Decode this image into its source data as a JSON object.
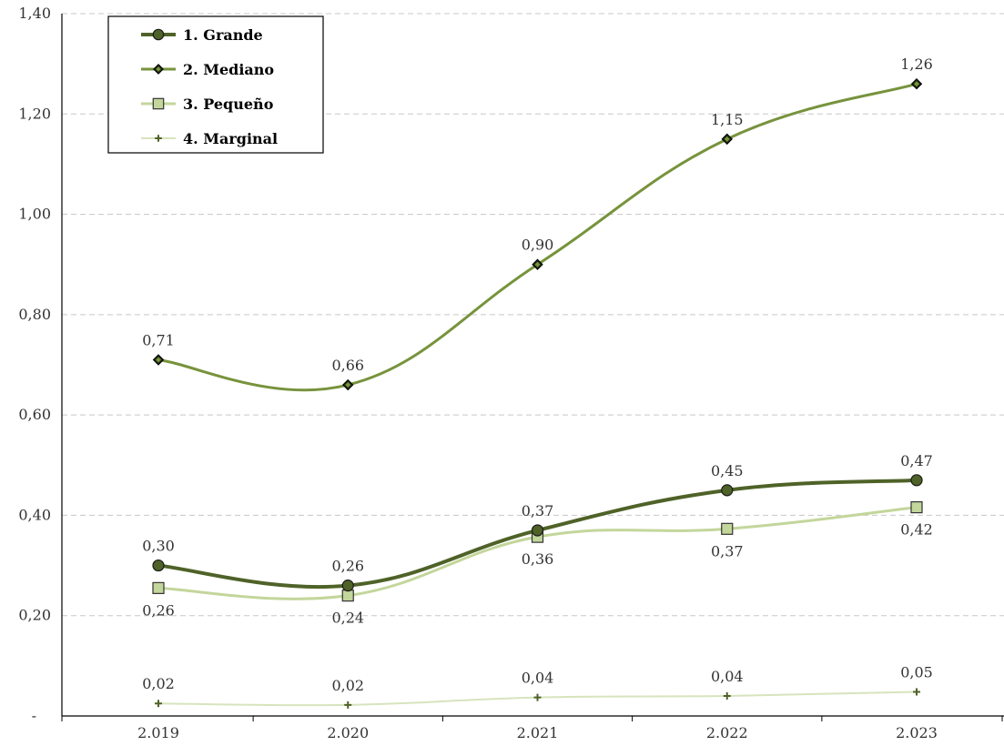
{
  "chart_data": {
    "type": "line",
    "title": "",
    "xlabel": "",
    "ylabel": "",
    "categories": [
      "2.019",
      "2.020",
      "2.021",
      "2.022",
      "2.023"
    ],
    "ylim": [
      0,
      1.4
    ],
    "yticks": [
      {
        "value": 0.2,
        "label": "0,20"
      },
      {
        "value": 0.4,
        "label": "0,40"
      },
      {
        "value": 0.6,
        "label": "0,60"
      },
      {
        "value": 0.8,
        "label": "0,80"
      },
      {
        "value": 1.0,
        "label": "1,00"
      },
      {
        "value": 1.2,
        "label": "1,20"
      },
      {
        "value": 1.4,
        "label": "1,40"
      }
    ],
    "zero_tick_label": "-",
    "grid": "horizontal dashed",
    "legend_position": "top-left",
    "series": [
      {
        "name": "1. Grande",
        "values": [
          0.3,
          0.26,
          0.37,
          0.45,
          0.47
        ],
        "labels": [
          "0,30",
          "0,26",
          "0,37",
          "0,45",
          "0,47"
        ],
        "label_pos": [
          "above",
          "above",
          "above",
          "above",
          "above"
        ],
        "color": "#4F6228",
        "marker": "circle",
        "marker_fill": "#4F6228",
        "line_width": 4
      },
      {
        "name": "2. Mediano",
        "values": [
          0.71,
          0.66,
          0.9,
          1.15,
          1.26
        ],
        "labels": [
          "0,71",
          "0,66",
          "0,90",
          "1,15",
          "1,26"
        ],
        "label_pos": [
          "above",
          "above",
          "above",
          "above",
          "above"
        ],
        "color": "#77933C",
        "marker": "diamond",
        "marker_fill": "#1f2a10",
        "line_width": 3
      },
      {
        "name": "3. Pequeño",
        "values": [
          0.255,
          0.24,
          0.357,
          0.373,
          0.416
        ],
        "labels": [
          "0,26",
          "0,24",
          "0,36",
          "0,37",
          "0,42"
        ],
        "label_pos": [
          "below",
          "below",
          "below",
          "below",
          "below"
        ],
        "color": "#C3D69B",
        "marker": "square",
        "marker_fill": "#C3D69B",
        "line_width": 3
      },
      {
        "name": "4. Marginal",
        "values": [
          0.025,
          0.022,
          0.037,
          0.04,
          0.048
        ],
        "labels": [
          "0,02",
          "0,02",
          "0,04",
          "0,04",
          "0,05"
        ],
        "label_pos": [
          "above",
          "above",
          "above",
          "above",
          "above"
        ],
        "color": "#D7E4BD",
        "marker": "plus",
        "marker_fill": "#4F6228",
        "line_width": 2
      }
    ]
  }
}
